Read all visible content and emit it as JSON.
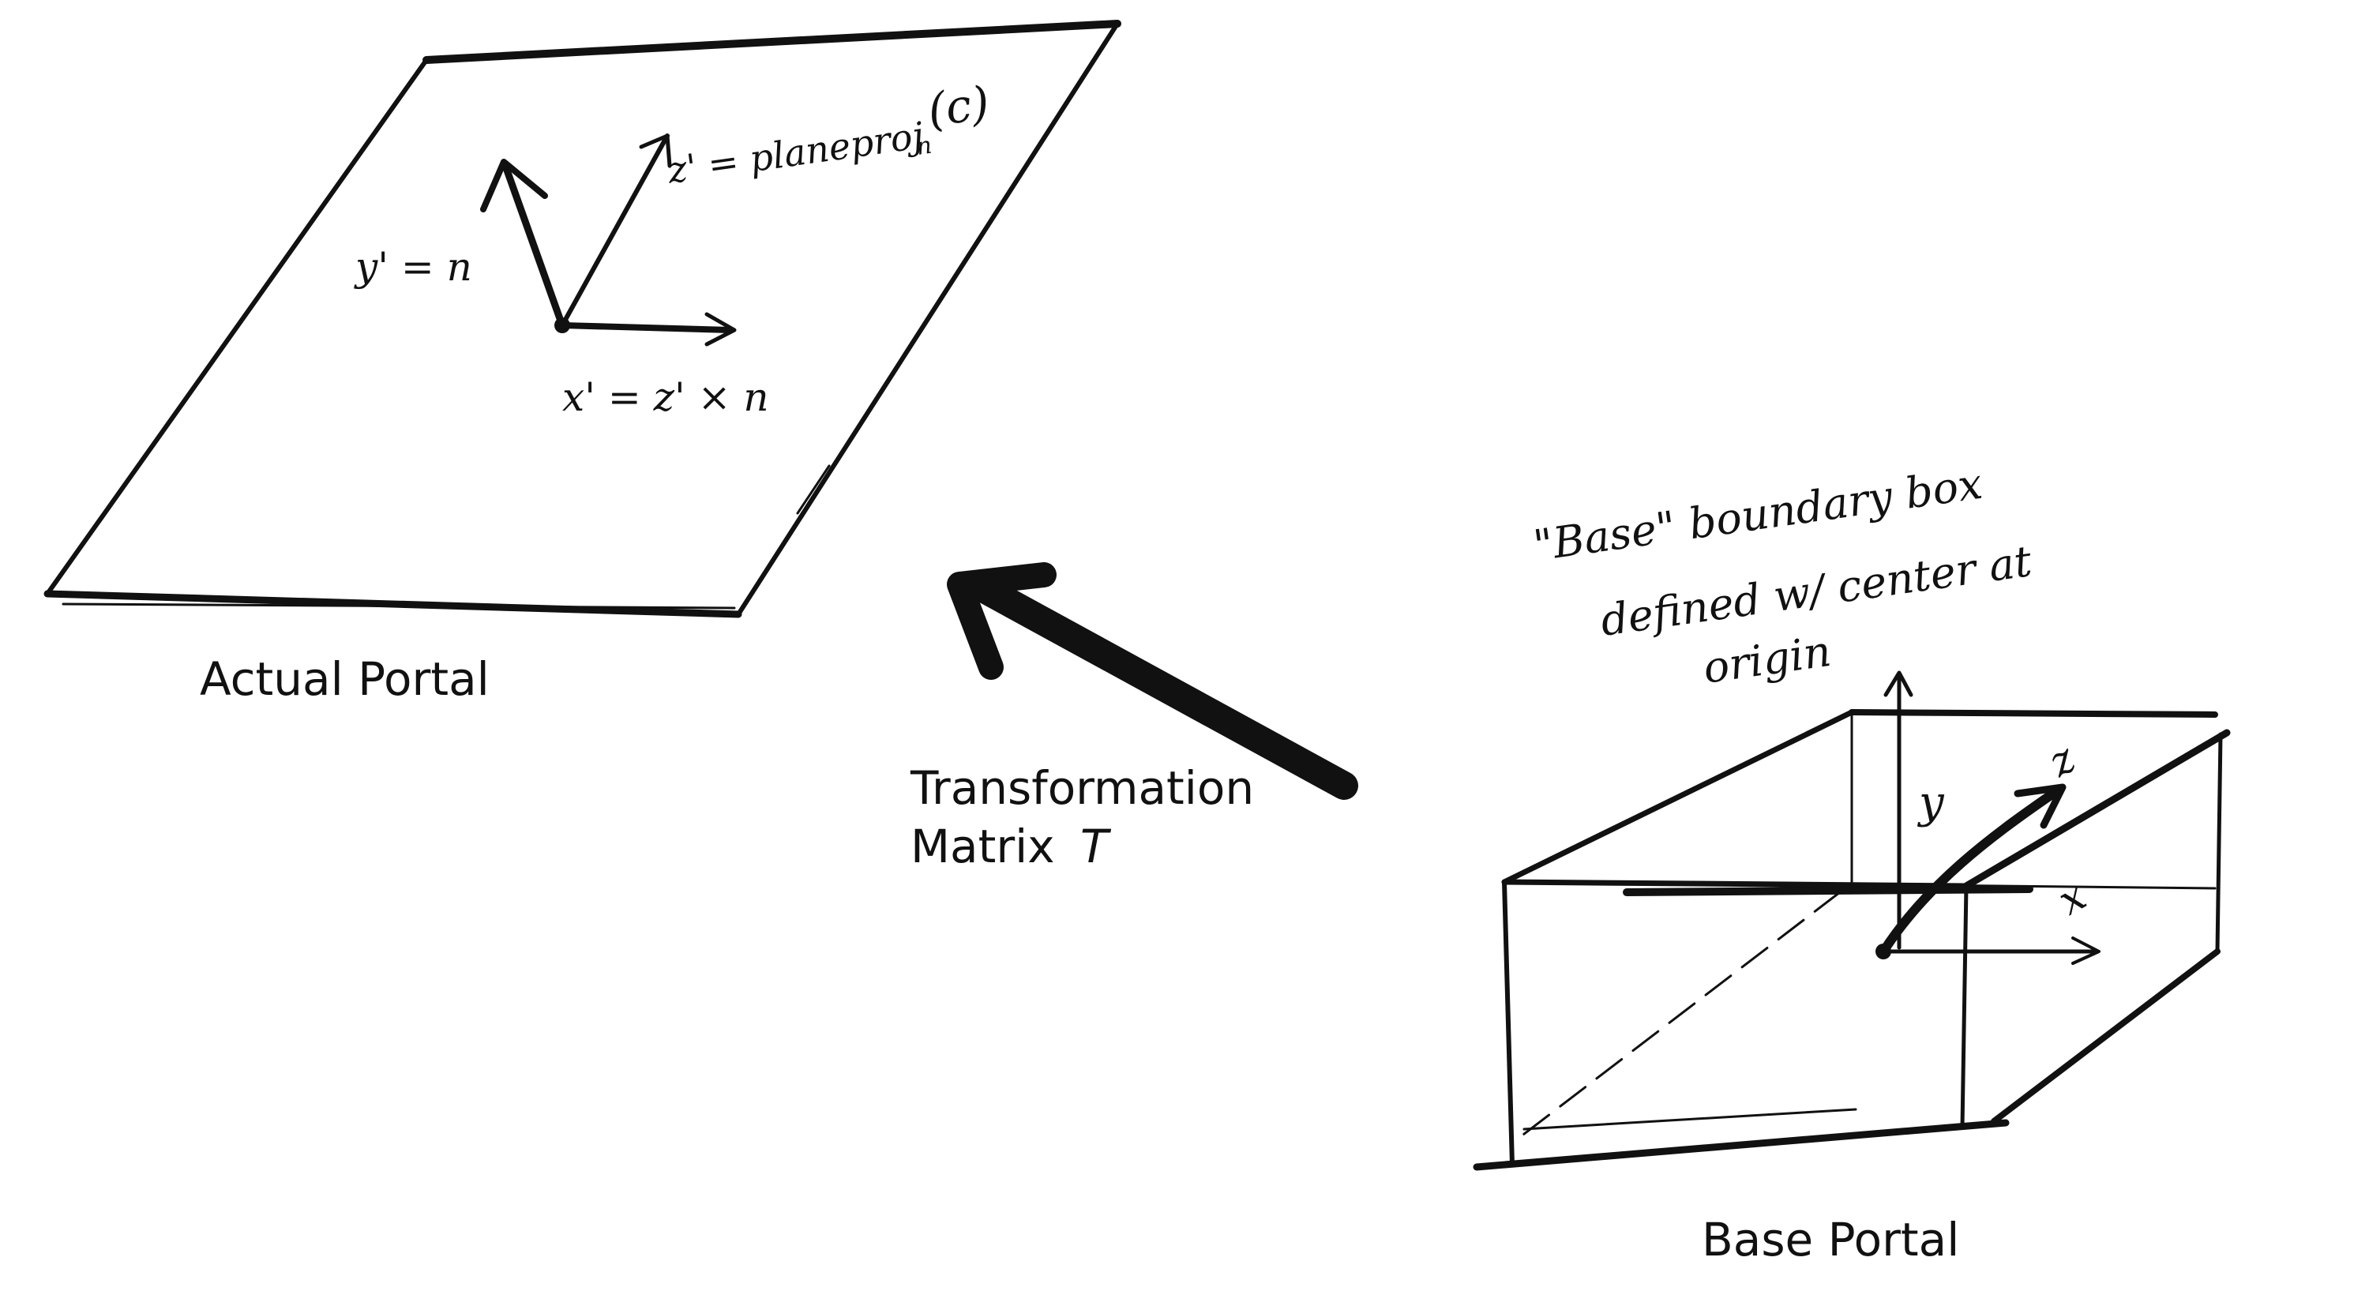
{
  "labels": {
    "actual_portal": "Actual Portal",
    "base_portal": "Base Portal",
    "transformation_line1": "Transformation",
    "transformation_line2": "Matrix",
    "transformation_symbol": "T"
  },
  "actual_portal_annotations": {
    "z_prime": "z' = planeproj",
    "z_prime_sub": "n",
    "z_prime_arg": "(c)",
    "y_prime": "y' = n",
    "x_prime": "x' = z' × n"
  },
  "base_portal_annotations": {
    "note_line1": "\"Base\" boundary box",
    "note_line2": "defined w/ center at",
    "note_line3": "origin",
    "axis_y": "y",
    "axis_z": "z",
    "axis_x": "x"
  },
  "colors": {
    "ink": "#111111",
    "background": "#ffffff"
  }
}
